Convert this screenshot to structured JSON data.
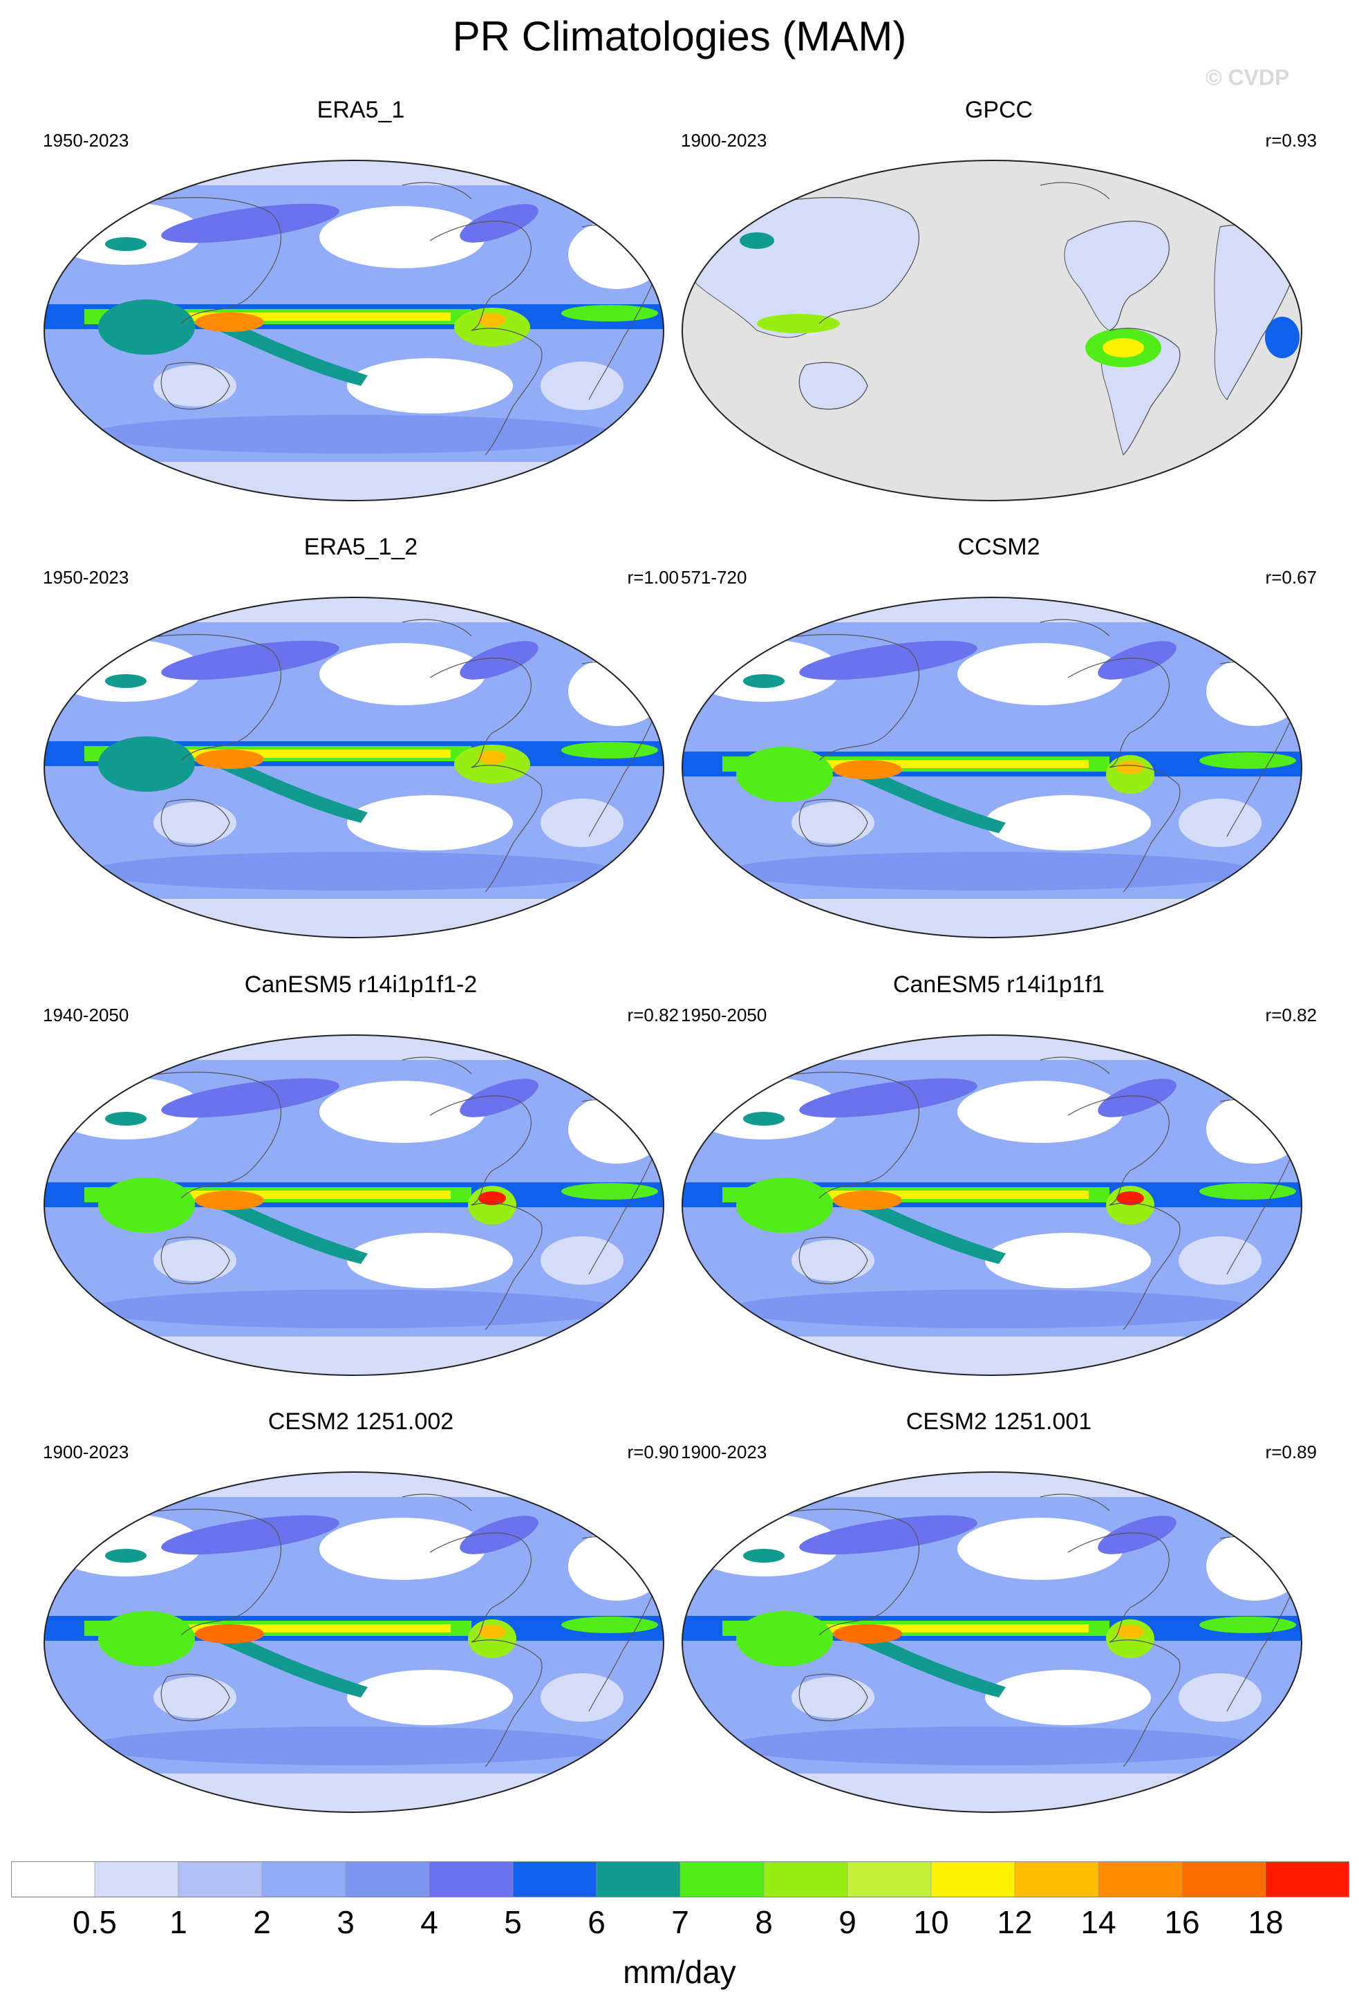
{
  "title": "PR Climatologies (MAM)",
  "credit": "© CVDP",
  "units": "mm/day",
  "colorbar": {
    "levels": [
      "0.5",
      "1",
      "2",
      "3",
      "4",
      "5",
      "6",
      "7",
      "8",
      "9",
      "10",
      "12",
      "14",
      "16",
      "18"
    ],
    "colors": [
      "#ffffff",
      "#d4dcf8",
      "#b0c0f6",
      "#92acf7",
      "#7c96f2",
      "#6a72ee",
      "#1160ec",
      "#119a8e",
      "#52ec18",
      "#98ee12",
      "#c4f23c",
      "#fff200",
      "#ffbf00",
      "#ff8c00",
      "#ff6e00",
      "#ff1a00"
    ]
  },
  "panels": [
    {
      "title": "ERA5_1",
      "period": "1950-2023",
      "corr": "",
      "style": "era"
    },
    {
      "title": "GPCC",
      "period": "1900-2023",
      "corr": "r=0.93",
      "style": "gpcc"
    },
    {
      "title": "ERA5_1_2",
      "period": "1950-2023",
      "corr": "r=1.00",
      "style": "era"
    },
    {
      "title": "CCSM2",
      "period": "571-720",
      "corr": "r=0.67",
      "style": "ccsm"
    },
    {
      "title": "CanESM5 r14i1p1f1-2",
      "period": "1940-2050",
      "corr": "r=0.82",
      "style": "can"
    },
    {
      "title": "CanESM5 r14i1p1f1",
      "period": "1950-2050",
      "corr": "r=0.82",
      "style": "can"
    },
    {
      "title": "CESM2 1251.002",
      "period": "1900-2023",
      "corr": "r=0.90",
      "style": "cesm"
    },
    {
      "title": "CESM2 1251.001",
      "period": "1900-2023",
      "corr": "r=0.89",
      "style": "cesm"
    }
  ]
}
